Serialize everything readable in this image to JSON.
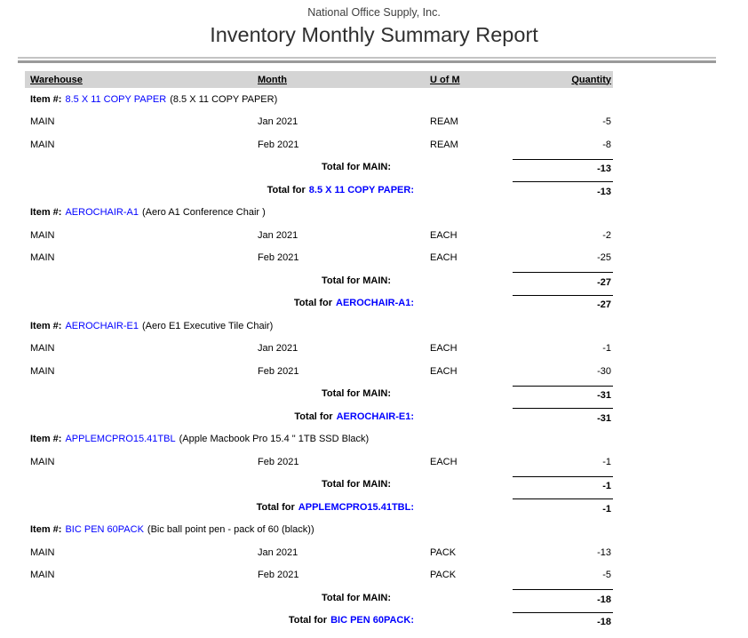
{
  "header": {
    "company": "National Office Supply, Inc.",
    "title": "Inventory Monthly Summary Report"
  },
  "colors": {
    "link_blue": "#0000ff",
    "header_band_gray": "#d4d4d4",
    "rule_light_gray": "#c3c3c3",
    "rule_dark_gray": "#9a9a9a",
    "text": "#000000"
  },
  "columns": {
    "warehouse": "Warehouse",
    "month": "Month",
    "uofm": "U of M",
    "quantity": "Quantity"
  },
  "labels": {
    "item_prefix": "Item #:",
    "total_for": "Total for"
  },
  "sections": [
    {
      "item_number": "8.5 X 11 COPY PAPER",
      "item_description": "(8.5 X 11 COPY PAPER)",
      "rows": [
        {
          "warehouse": "MAIN",
          "month": "Jan 2021",
          "uofm": "REAM",
          "quantity": "-5"
        },
        {
          "warehouse": "MAIN",
          "month": "Feb 2021",
          "uofm": "REAM",
          "quantity": "-8"
        }
      ],
      "warehouse_total_label": "Total for MAIN:",
      "warehouse_total": "-13",
      "item_total_link": "8.5 X 11 COPY PAPER:",
      "item_total": "-13"
    },
    {
      "item_number": "AEROCHAIR-A1",
      "item_description": "(Aero A1 Conference Chair )",
      "rows": [
        {
          "warehouse": "MAIN",
          "month": "Jan 2021",
          "uofm": "EACH",
          "quantity": "-2"
        },
        {
          "warehouse": "MAIN",
          "month": "Feb 2021",
          "uofm": "EACH",
          "quantity": "-25"
        }
      ],
      "warehouse_total_label": "Total for MAIN:",
      "warehouse_total": "-27",
      "item_total_link": "AEROCHAIR-A1:",
      "item_total": "-27"
    },
    {
      "item_number": "AEROCHAIR-E1",
      "item_description": "(Aero E1 Executive Tile Chair)",
      "rows": [
        {
          "warehouse": "MAIN",
          "month": "Jan 2021",
          "uofm": "EACH",
          "quantity": "-1"
        },
        {
          "warehouse": "MAIN",
          "month": "Feb 2021",
          "uofm": "EACH",
          "quantity": "-30"
        }
      ],
      "warehouse_total_label": "Total for MAIN:",
      "warehouse_total": "-31",
      "item_total_link": "AEROCHAIR-E1:",
      "item_total": "-31"
    },
    {
      "item_number": "APPLEMCPRO15.41TBL",
      "item_description": "(Apple Macbook Pro 15.4 \" 1TB SSD Black)",
      "rows": [
        {
          "warehouse": "MAIN",
          "month": "Feb 2021",
          "uofm": "EACH",
          "quantity": "-1"
        }
      ],
      "warehouse_total_label": "Total for MAIN:",
      "warehouse_total": "-1",
      "item_total_link": "APPLEMCPRO15.41TBL:",
      "item_total": "-1"
    },
    {
      "item_number": "BIC PEN 60PACK",
      "item_description": "(Bic ball point pen - pack of 60 (black))",
      "rows": [
        {
          "warehouse": "MAIN",
          "month": "Jan 2021",
          "uofm": "PACK",
          "quantity": "-13"
        },
        {
          "warehouse": "MAIN",
          "month": "Feb 2021",
          "uofm": "PACK",
          "quantity": "-5"
        }
      ],
      "warehouse_total_label": "Total for MAIN:",
      "warehouse_total": "-18",
      "item_total_link": "BIC PEN 60PACK:",
      "item_total": "-18"
    }
  ]
}
